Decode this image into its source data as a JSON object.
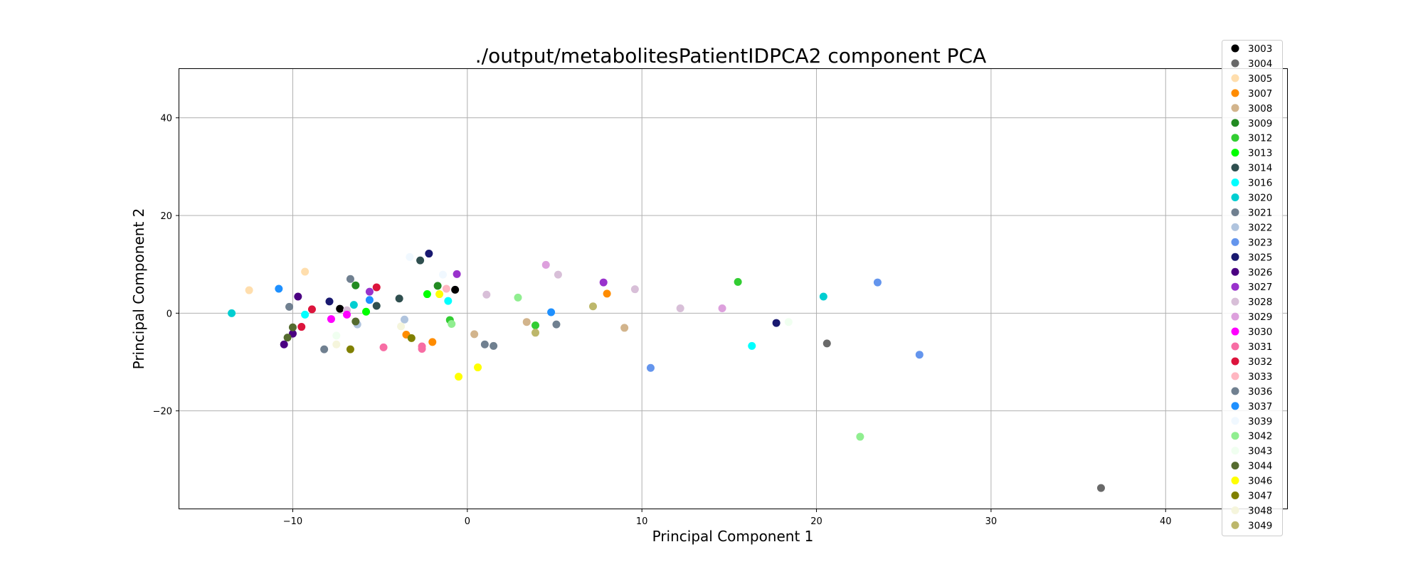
{
  "chart_data": {
    "type": "scatter",
    "title": "./output/metabolitesPatientIDPCA2 component PCA",
    "xlabel": "Principal Component 1",
    "ylabel": "Principal Component 2",
    "xlim": [
      -16.5,
      47
    ],
    "ylim": [
      -40,
      50
    ],
    "xticks": [
      -10,
      0,
      10,
      20,
      30,
      40
    ],
    "yticks": [
      -20,
      0,
      20,
      40
    ],
    "xtick_labels": [
      "−10",
      "0",
      "10",
      "20",
      "30",
      "40"
    ],
    "ytick_labels": [
      "−20",
      "0",
      "20",
      "40"
    ],
    "grid": true,
    "legend_position": "upper right",
    "series": [
      {
        "name": "3003",
        "color": "#000000",
        "points": [
          [
            -7.3,
            0.9
          ],
          [
            -0.7,
            4.8
          ]
        ]
      },
      {
        "name": "3004",
        "color": "#696969",
        "points": [
          [
            20.6,
            -6.2
          ],
          [
            36.3,
            -35.8
          ]
        ]
      },
      {
        "name": "3005",
        "color": "#ffdead",
        "points": [
          [
            -12.5,
            4.7
          ],
          [
            -9.3,
            8.5
          ]
        ]
      },
      {
        "name": "3007",
        "color": "#ff8c00",
        "points": [
          [
            -3.5,
            -4.4
          ],
          [
            -2.0,
            -5.9
          ],
          [
            8.0,
            4.0
          ]
        ]
      },
      {
        "name": "3008",
        "color": "#d2b48c",
        "points": [
          [
            0.4,
            -4.3
          ],
          [
            3.4,
            -1.8
          ],
          [
            9.0,
            -3.0
          ]
        ]
      },
      {
        "name": "3009",
        "color": "#228b22",
        "points": [
          [
            -6.4,
            5.7
          ],
          [
            -1.7,
            5.6
          ]
        ]
      },
      {
        "name": "3012",
        "color": "#32cd32",
        "points": [
          [
            -1.0,
            -1.4
          ],
          [
            3.9,
            -2.5
          ],
          [
            15.5,
            6.4
          ]
        ]
      },
      {
        "name": "3013",
        "color": "#00ff00",
        "points": [
          [
            -5.8,
            0.3
          ],
          [
            -2.3,
            3.9
          ]
        ]
      },
      {
        "name": "3014",
        "color": "#2f4f4f",
        "points": [
          [
            -3.9,
            3.0
          ],
          [
            -5.2,
            1.5
          ],
          [
            -2.7,
            10.8
          ]
        ]
      },
      {
        "name": "3016",
        "color": "#00ffff",
        "points": [
          [
            -9.3,
            -0.3
          ],
          [
            -1.1,
            2.5
          ],
          [
            16.3,
            -6.7
          ]
        ]
      },
      {
        "name": "3020",
        "color": "#00ced1",
        "points": [
          [
            -13.5,
            0.0
          ],
          [
            -6.5,
            1.7
          ],
          [
            20.4,
            3.4
          ]
        ]
      },
      {
        "name": "3021",
        "color": "#708090",
        "points": [
          [
            -10.2,
            1.3
          ],
          [
            1.0,
            -6.4
          ],
          [
            1.5,
            -6.7
          ]
        ]
      },
      {
        "name": "3022",
        "color": "#b0c4de",
        "points": [
          [
            -6.3,
            -2.3
          ],
          [
            -3.6,
            -1.3
          ]
        ]
      },
      {
        "name": "3023",
        "color": "#6495ed",
        "points": [
          [
            10.5,
            -11.2
          ],
          [
            23.5,
            6.3
          ],
          [
            25.9,
            -8.5
          ]
        ]
      },
      {
        "name": "3025",
        "color": "#191970",
        "points": [
          [
            -7.9,
            2.4
          ],
          [
            -2.2,
            12.2
          ],
          [
            17.7,
            -2.0
          ]
        ]
      },
      {
        "name": "3026",
        "color": "#4b0082",
        "points": [
          [
            -10.5,
            -6.4
          ],
          [
            -10.0,
            -4.2
          ],
          [
            -9.7,
            3.4
          ]
        ]
      },
      {
        "name": "3027",
        "color": "#9932cc",
        "points": [
          [
            -5.6,
            4.4
          ],
          [
            -0.6,
            8.0
          ],
          [
            7.8,
            6.3
          ]
        ]
      },
      {
        "name": "3028",
        "color": "#d8bfd8",
        "points": [
          [
            -6.9,
            0.6
          ],
          [
            1.1,
            3.8
          ],
          [
            5.2,
            7.9
          ],
          [
            9.6,
            4.9
          ],
          [
            12.2,
            1.0
          ]
        ]
      },
      {
        "name": "3029",
        "color": "#dda0dd",
        "points": [
          [
            4.5,
            9.9
          ],
          [
            14.6,
            1.0
          ]
        ]
      },
      {
        "name": "3030",
        "color": "#ff00ff",
        "points": [
          [
            -7.8,
            -1.2
          ],
          [
            -6.9,
            -0.3
          ]
        ]
      },
      {
        "name": "3031",
        "color": "#f76da4",
        "points": [
          [
            -4.8,
            -7.0
          ],
          [
            -2.6,
            -6.8
          ],
          [
            -2.6,
            -7.3
          ]
        ]
      },
      {
        "name": "3032",
        "color": "#dc143c",
        "points": [
          [
            -9.5,
            -2.8
          ],
          [
            -8.9,
            0.8
          ],
          [
            -5.2,
            5.3
          ]
        ]
      },
      {
        "name": "3033",
        "color": "#ffb6c1",
        "points": [
          [
            -1.2,
            5.0
          ]
        ]
      },
      {
        "name": "3036",
        "color": "#708090",
        "points": [
          [
            -8.2,
            -7.4
          ],
          [
            -6.7,
            7.0
          ],
          [
            5.1,
            -2.3
          ]
        ]
      },
      {
        "name": "3037",
        "color": "#1e90ff",
        "points": [
          [
            -10.8,
            5.0
          ],
          [
            -5.6,
            2.7
          ],
          [
            4.8,
            0.2
          ]
        ]
      },
      {
        "name": "3039",
        "color": "#f0f8ff",
        "points": [
          [
            -3.3,
            11.5
          ],
          [
            -1.4,
            7.9
          ]
        ]
      },
      {
        "name": "3042",
        "color": "#90ee90",
        "points": [
          [
            -0.9,
            -2.2
          ],
          [
            2.9,
            3.2
          ],
          [
            22.5,
            -25.3
          ]
        ]
      },
      {
        "name": "3043",
        "color": "#f0fff0",
        "points": [
          [
            -7.5,
            -4.6
          ],
          [
            18.4,
            -1.8
          ]
        ]
      },
      {
        "name": "3044",
        "color": "#556b2f",
        "points": [
          [
            -10.3,
            -5.0
          ],
          [
            -10.0,
            -2.9
          ],
          [
            -6.4,
            -1.7
          ]
        ]
      },
      {
        "name": "3046",
        "color": "#ffff00",
        "points": [
          [
            -1.6,
            3.9
          ],
          [
            -0.5,
            -13.0
          ],
          [
            0.6,
            -11.1
          ]
        ]
      },
      {
        "name": "3047",
        "color": "#808000",
        "points": [
          [
            -6.7,
            -7.4
          ],
          [
            -3.2,
            -5.1
          ]
        ]
      },
      {
        "name": "3048",
        "color": "#f5f5dc",
        "points": [
          [
            -7.5,
            -6.4
          ],
          [
            -3.8,
            -2.7
          ]
        ]
      },
      {
        "name": "3049",
        "color": "#bdb76b",
        "points": [
          [
            3.9,
            -4.0
          ],
          [
            7.2,
            1.4
          ]
        ]
      }
    ]
  }
}
